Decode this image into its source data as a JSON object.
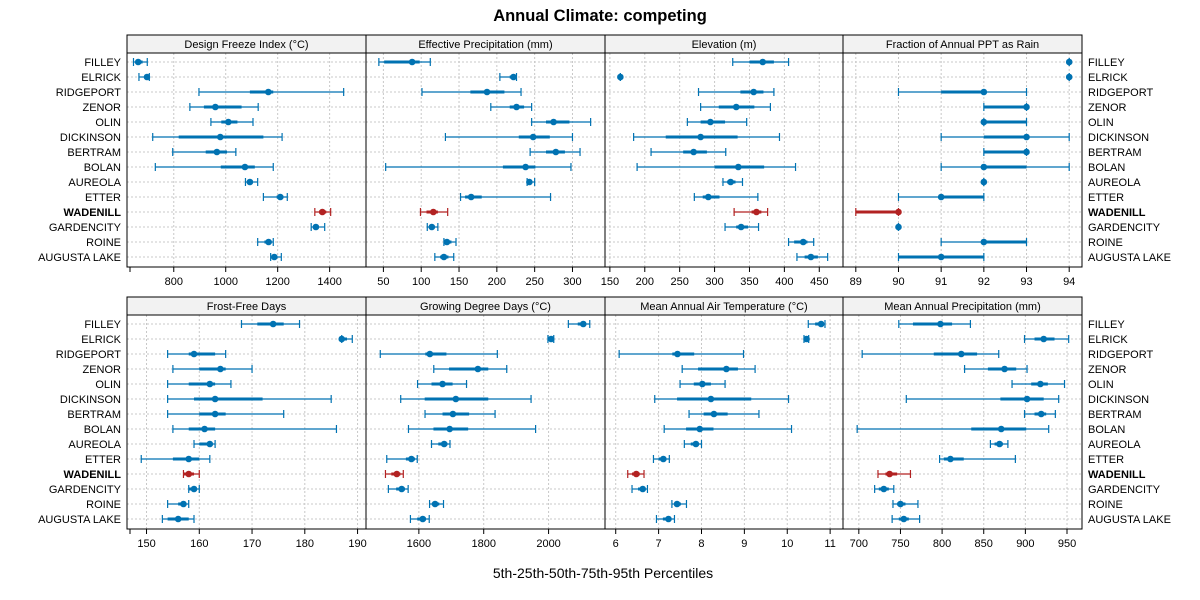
{
  "chart_data": {
    "type": "dotplot-percentiles",
    "title": "Annual Climate: competing",
    "xlabel": "5th-25th-50th-75th-95th Percentiles",
    "highlight_site": "WADENILL",
    "colors": {
      "default": "#0072B2",
      "highlight": "#B22222",
      "strip_bg": "#F2F2F2",
      "grid": "#C8C8C8"
    },
    "sites": [
      "FILLEY",
      "ELRICK",
      "RIDGEPORT",
      "ZENOR",
      "OLIN",
      "DICKINSON",
      "BERTRAM",
      "BOLAN",
      "AUREOLA",
      "ETTER",
      "WADENILL",
      "GARDENCITY",
      "ROINE",
      "AUGUSTA LAKE"
    ],
    "percentile_labels": [
      "5th",
      "25th",
      "50th",
      "75th",
      "95th"
    ],
    "panels": [
      {
        "title": "Design Freeze Index (°C)",
        "xlim": [
          620,
          1540
        ],
        "ticks": [
          800,
          1000,
          1200,
          1400
        ],
        "values": [
          [
            645,
            654,
            663,
            680,
            698
          ],
          [
            666,
            690,
            697,
            703,
            706
          ],
          [
            897,
            1093,
            1164,
            1183,
            1454
          ],
          [
            862,
            916,
            960,
            1061,
            1125
          ],
          [
            943,
            983,
            1010,
            1045,
            1105
          ],
          [
            719,
            819,
            979,
            1145,
            1217
          ],
          [
            796,
            923,
            966,
            1005,
            1039
          ],
          [
            729,
            981,
            1074,
            1112,
            1183
          ],
          [
            1076,
            1083,
            1093,
            1105,
            1123
          ],
          [
            1145,
            1196,
            1210,
            1222,
            1237
          ],
          [
            1343,
            1359,
            1372,
            1387,
            1404
          ],
          [
            1329,
            1338,
            1347,
            1359,
            1381
          ],
          [
            1123,
            1149,
            1165,
            1177,
            1183
          ],
          [
            1173,
            1180,
            1187,
            1199,
            1214
          ]
        ]
      },
      {
        "title": "Effective Precipitation (mm)",
        "xlim": [
          27,
          343
        ],
        "ticks": [
          50,
          100,
          150,
          200,
          250,
          300
        ],
        "values": [
          [
            44,
            51,
            88,
            98,
            112
          ],
          [
            204,
            217,
            222,
            225,
            226
          ],
          [
            101,
            165,
            187,
            210,
            232
          ],
          [
            192,
            217,
            226,
            236,
            246
          ],
          [
            246,
            265,
            275,
            296,
            324
          ],
          [
            132,
            229,
            248,
            270,
            300
          ],
          [
            244,
            265,
            278,
            290,
            310
          ],
          [
            53,
            208,
            238,
            251,
            298
          ],
          [
            240,
            242,
            243,
            246,
            250
          ],
          [
            152,
            158,
            166,
            180,
            271
          ],
          [
            99,
            107,
            116,
            122,
            135
          ],
          [
            108,
            111,
            114,
            118,
            122
          ],
          [
            130,
            131,
            134,
            140,
            146
          ],
          [
            118,
            125,
            130,
            136,
            143
          ]
        ]
      },
      {
        "title": "Elevation (m)",
        "xlim": [
          143,
          484
        ],
        "ticks": [
          150,
          200,
          250,
          300,
          350,
          400,
          450
        ],
        "values": [
          [
            326,
            350,
            369,
            385,
            406
          ],
          [
            165,
            165,
            165,
            165,
            165
          ],
          [
            277,
            337,
            356,
            370,
            385
          ],
          [
            280,
            306,
            331,
            357,
            380
          ],
          [
            261,
            280,
            294,
            315,
            346
          ],
          [
            184,
            230,
            280,
            333,
            393
          ],
          [
            209,
            255,
            270,
            289,
            316
          ],
          [
            189,
            300,
            334,
            371,
            416
          ],
          [
            312,
            318,
            323,
            330,
            340
          ],
          [
            271,
            283,
            291,
            307,
            362
          ],
          [
            328,
            353,
            360,
            367,
            376
          ],
          [
            315,
            331,
            338,
            348,
            363
          ],
          [
            406,
            414,
            427,
            433,
            442
          ],
          [
            418,
            429,
            438,
            448,
            462
          ]
        ]
      },
      {
        "title": "Fraction of Annual PPT as Rain",
        "xlim": [
          88.7,
          94.3
        ],
        "ticks": [
          89,
          90,
          91,
          92,
          93,
          94
        ],
        "values": [
          [
            94,
            94,
            94,
            94,
            94
          ],
          [
            94,
            94,
            94,
            94,
            94
          ],
          [
            90,
            91,
            92,
            92,
            93
          ],
          [
            92,
            92,
            93,
            93,
            93
          ],
          [
            92,
            92,
            92,
            93,
            93
          ],
          [
            91,
            92,
            93,
            93,
            94
          ],
          [
            92,
            92,
            93,
            93,
            93
          ],
          [
            91,
            92,
            92,
            93,
            94
          ],
          [
            92,
            92,
            92,
            92,
            92
          ],
          [
            90,
            91,
            91,
            92,
            92
          ],
          [
            89,
            89,
            90,
            90,
            90
          ],
          [
            90,
            90,
            90,
            90,
            90
          ],
          [
            91,
            92,
            92,
            93,
            93
          ],
          [
            90,
            90,
            91,
            92,
            92
          ]
        ]
      },
      {
        "title": "Frost-Free Days",
        "xlim": [
          146.3,
          191.6
        ],
        "ticks": [
          150,
          160,
          170,
          180,
          190
        ],
        "values": [
          [
            168,
            171,
            174,
            176,
            179
          ],
          [
            187,
            187,
            187,
            188,
            189
          ],
          [
            154,
            158,
            159,
            163,
            165
          ],
          [
            155,
            160,
            164,
            165,
            170
          ],
          [
            154,
            158,
            162,
            163,
            166
          ],
          [
            154,
            159,
            163,
            172,
            185
          ],
          [
            154,
            160,
            163,
            165,
            176
          ],
          [
            155,
            158,
            161,
            163,
            186
          ],
          [
            159,
            160,
            162,
            162,
            163
          ],
          [
            149,
            155,
            158,
            160,
            162
          ],
          [
            157,
            157,
            158,
            159,
            160
          ],
          [
            158,
            158,
            159,
            159,
            160
          ],
          [
            154,
            156,
            157,
            157,
            158
          ],
          [
            153,
            154,
            156,
            158,
            159
          ]
        ]
      },
      {
        "title": "Growing Degree Days (°C)",
        "xlim": [
          1437,
          2174
        ],
        "ticks": [
          1600,
          1800,
          2000
        ],
        "values": [
          [
            2061,
            2090,
            2107,
            2115,
            2127
          ],
          [
            1998,
            2003,
            2008,
            2012,
            2016
          ],
          [
            1481,
            1620,
            1634,
            1685,
            1842
          ],
          [
            1646,
            1693,
            1782,
            1814,
            1871
          ],
          [
            1596,
            1639,
            1673,
            1704,
            1747
          ],
          [
            1544,
            1618,
            1714,
            1814,
            1946
          ],
          [
            1619,
            1673,
            1705,
            1755,
            1835
          ],
          [
            1568,
            1645,
            1695,
            1752,
            1960
          ],
          [
            1639,
            1660,
            1678,
            1688,
            1696
          ],
          [
            1501,
            1560,
            1577,
            1588,
            1595
          ],
          [
            1497,
            1515,
            1532,
            1543,
            1552
          ],
          [
            1506,
            1530,
            1547,
            1557,
            1567
          ],
          [
            1633,
            1640,
            1650,
            1663,
            1676
          ],
          [
            1574,
            1595,
            1612,
            1622,
            1632
          ]
        ]
      },
      {
        "title": "Mean Annual Air Temperature (°C)",
        "xlim": [
          5.75,
          11.3
        ],
        "ticks": [
          6,
          7,
          8,
          9,
          10,
          11
        ],
        "values": [
          [
            10.49,
            10.65,
            10.79,
            10.83,
            10.88
          ],
          [
            10.39,
            10.42,
            10.45,
            10.48,
            10.5
          ],
          [
            6.08,
            7.32,
            7.44,
            7.83,
            8.98
          ],
          [
            7.55,
            7.92,
            8.58,
            8.85,
            9.25
          ],
          [
            7.5,
            7.82,
            8.02,
            8.22,
            8.55
          ],
          [
            6.91,
            7.43,
            8.22,
            9.16,
            10.03
          ],
          [
            7.71,
            8.05,
            8.29,
            8.61,
            9.34
          ],
          [
            7.13,
            7.64,
            7.96,
            8.28,
            10.1
          ],
          [
            7.6,
            7.75,
            7.87,
            7.93,
            8.0
          ],
          [
            6.88,
            7.0,
            7.11,
            7.18,
            7.25
          ],
          [
            6.28,
            6.38,
            6.48,
            6.56,
            6.66
          ],
          [
            6.38,
            6.52,
            6.63,
            6.68,
            6.74
          ],
          [
            7.31,
            7.37,
            7.43,
            7.52,
            7.65
          ],
          [
            6.95,
            7.1,
            7.23,
            7.3,
            7.37
          ]
        ]
      },
      {
        "title": "Mean Annual Precipitation (mm)",
        "xlim": [
          681,
          968
        ],
        "ticks": [
          700,
          750,
          800,
          850,
          900,
          950
        ],
        "values": [
          [
            748,
            765,
            798,
            812,
            834
          ],
          [
            899,
            911,
            922,
            935,
            952
          ],
          [
            704,
            790,
            823,
            842,
            868
          ],
          [
            827,
            855,
            875,
            889,
            902
          ],
          [
            884,
            907,
            918,
            927,
            947
          ],
          [
            757,
            870,
            902,
            922,
            940
          ],
          [
            899,
            911,
            919,
            925,
            936
          ],
          [
            698,
            835,
            871,
            901,
            928
          ],
          [
            858,
            863,
            869,
            873,
            879
          ],
          [
            797,
            802,
            810,
            826,
            888
          ],
          [
            723,
            732,
            737,
            746,
            762
          ],
          [
            719,
            724,
            730,
            736,
            742
          ],
          [
            741,
            746,
            750,
            756,
            771
          ],
          [
            740,
            748,
            754,
            760,
            773
          ]
        ]
      }
    ]
  }
}
